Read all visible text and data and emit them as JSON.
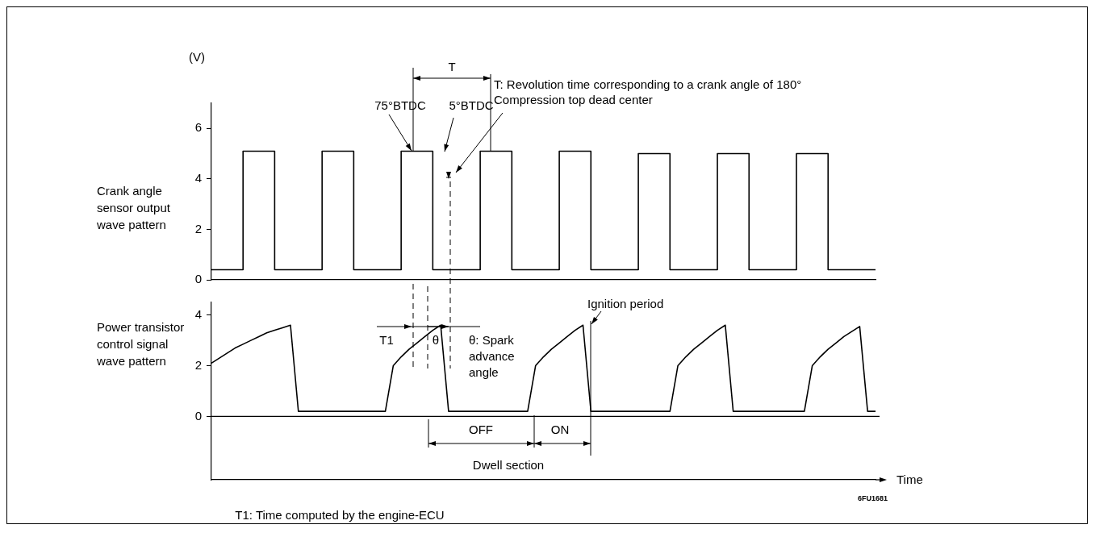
{
  "chart_data": [
    {
      "type": "step",
      "title": "Crank angle sensor output wave pattern",
      "ylabel": "(V)",
      "categories": [
        null,
        null,
        null,
        null,
        null,
        null,
        null,
        null,
        null,
        null,
        null,
        null,
        null,
        null,
        null,
        null,
        null,
        null,
        null,
        null,
        null,
        null,
        null,
        null,
        null,
        null,
        null,
        null,
        null,
        null,
        null,
        null,
        null,
        null,
        null,
        null,
        null,
        null,
        null,
        null,
        null,
        null,
        null,
        null,
        null,
        null,
        null,
        null,
        null,
        null,
        null,
        null,
        null,
        null,
        null,
        null,
        null,
        null,
        null,
        null,
        null,
        null,
        null,
        null,
        null,
        null,
        null,
        null,
        null,
        null,
        null,
        null,
        null,
        null,
        null,
        null,
        null,
        null,
        null,
        null,
        null,
        null,
        null,
        null,
        null
      ],
      "values": [
        0.4,
        0.4,
        0.4,
        0.4,
        0.4,
        5.1,
        5.1,
        5.1,
        5.1,
        0.4,
        0.4,
        0.4,
        0.4,
        0.4,
        0.4,
        5.1,
        5.1,
        5.1,
        5.1,
        0.4,
        0.4,
        0.4,
        0.4,
        0.4,
        0.4,
        5.1,
        5.1,
        5.1,
        5.1,
        0.4,
        0.4,
        0.4,
        0.4,
        0.4,
        0.4,
        5.1,
        5.1,
        5.1,
        5.1,
        0.4,
        0.4,
        0.4,
        0.4,
        0.4,
        0.4,
        5.1,
        5.1,
        5.1,
        5.1,
        0.4,
        0.4,
        0.4,
        0.4,
        0.4,
        0.4,
        5.0,
        5.0,
        5.0,
        5.0,
        0.4,
        0.4,
        0.4,
        0.4,
        0.4,
        0.4,
        5.0,
        5.0,
        5.0,
        5.0,
        0.4,
        0.4,
        0.4,
        0.4,
        0.4,
        0.4,
        5.0,
        5.0,
        5.0,
        5.0,
        0.4,
        0.4,
        0.4,
        0.4,
        0.4,
        0.4
      ],
      "color": "#000000",
      "ylim": [
        0,
        7
      ],
      "yticks": [
        0,
        2,
        4,
        6
      ],
      "tick_labels": "y",
      "annotations": [
        "T",
        "T: Revolution time corresponding to a crank angle of 180°",
        "Compression top dead center",
        "75°BTDC",
        "5°BTDC"
      ]
    },
    {
      "type": "line",
      "title": "Power transistor control signal wave pattern",
      "xlabel": "Time",
      "categories": [
        null,
        null,
        null,
        null,
        null,
        null,
        null,
        null,
        null,
        null,
        null,
        null,
        null,
        null,
        null,
        null,
        null,
        null,
        null,
        null,
        null,
        null,
        null,
        null,
        null,
        null,
        null,
        null,
        null,
        null,
        null,
        null,
        null,
        null,
        null,
        null,
        null,
        null,
        null,
        null,
        null,
        null,
        null,
        null,
        null,
        null,
        null,
        null,
        null,
        null,
        null,
        null,
        null,
        null,
        null,
        null,
        null,
        null,
        null,
        null,
        null,
        null,
        null,
        null,
        null,
        null,
        null,
        null,
        null,
        null,
        null,
        null,
        null,
        null,
        null,
        null,
        null,
        null,
        null,
        null,
        null,
        null,
        null,
        null,
        null
      ],
      "values": [
        2.1,
        2.3,
        2.5,
        2.7,
        2.85,
        3.0,
        3.15,
        3.3,
        3.4,
        3.5,
        3.6,
        0.2,
        0.2,
        0.2,
        0.2,
        0.2,
        0.2,
        0.2,
        0.2,
        0.2,
        0.2,
        0.2,
        0.2,
        2.0,
        2.35,
        2.65,
        2.9,
        3.15,
        3.4,
        3.6,
        0.2,
        0.2,
        0.2,
        0.2,
        0.2,
        0.2,
        0.2,
        0.2,
        0.2,
        0.2,
        0.2,
        2.0,
        2.35,
        2.65,
        2.9,
        3.15,
        3.4,
        3.6,
        0.2,
        0.2,
        0.2,
        0.2,
        0.2,
        0.2,
        0.2,
        0.2,
        0.2,
        0.2,
        0.2,
        2.0,
        2.35,
        2.65,
        2.9,
        3.15,
        3.4,
        3.6,
        0.2,
        0.2,
        0.2,
        0.2,
        0.2,
        0.2,
        0.2,
        0.2,
        0.2,
        0.2,
        2.0,
        2.35,
        2.65,
        2.9,
        3.15,
        3.35,
        3.55,
        0.2,
        0.2
      ],
      "color": "#000000",
      "ylim": [
        -2.5,
        4.5
      ],
      "yticks": [
        0,
        2,
        4
      ],
      "tick_labels": "y",
      "ref_lines": [
        {
          "axis": "y",
          "value": 0
        }
      ],
      "annotations": [
        "T1",
        "θ",
        "θ: Spark advance angle",
        "Ignition period",
        "OFF",
        "ON",
        "Dwell section",
        "6FU1681",
        "T1: Time computed by the engine-ECU"
      ]
    }
  ]
}
